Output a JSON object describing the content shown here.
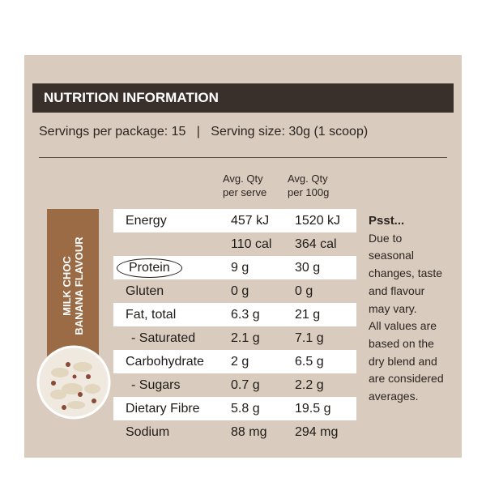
{
  "header": {
    "title": "NUTRITION INFORMATION"
  },
  "servings": {
    "package": "Servings per package: 15",
    "separator": "|",
    "size": "Serving size: 30g (1 scoop)"
  },
  "columns": [
    {
      "lines": [
        "Avg. Qty",
        "per serve"
      ]
    },
    {
      "lines": [
        "Avg. Qty",
        "per 100g"
      ]
    }
  ],
  "table": {
    "rows": [
      {
        "name": "Energy",
        "serve": "457 kJ",
        "per100": "1520 kJ"
      },
      {
        "serve": "110 cal",
        "per100": "364 cal"
      },
      {
        "name": "Protein",
        "serve": "9 g",
        "per100": "30 g"
      },
      {
        "name": "Gluten",
        "serve": "0 g",
        "per100": "0 g"
      },
      {
        "name": "Fat, total",
        "serve": "6.3 g",
        "per100": "21 g"
      },
      {
        "name": "- Saturated",
        "serve": "2.1 g",
        "per100": "7.1 g"
      },
      {
        "name": "Carbohydrate",
        "serve": "2 g",
        "per100": "6.5 g"
      },
      {
        "name": "- Sugars",
        "serve": "0.7 g",
        "per100": "2.2 g"
      },
      {
        "name": "Dietary Fibre",
        "serve": "5.8 g",
        "per100": "19.5 g"
      },
      {
        "name": "Sodium",
        "serve": "88 mg",
        "per100": "294 mg"
      }
    ]
  },
  "flavour": {
    "lines": [
      "MILK CHOC",
      "BANANA FLAVOUR"
    ]
  },
  "note": {
    "title": "Psst...",
    "lines": [
      "Due to",
      "seasonal",
      "changes, taste",
      "and flavour",
      "may vary.",
      "All values are",
      "based on the",
      "dry blend and",
      "are considered",
      "averages."
    ]
  }
}
